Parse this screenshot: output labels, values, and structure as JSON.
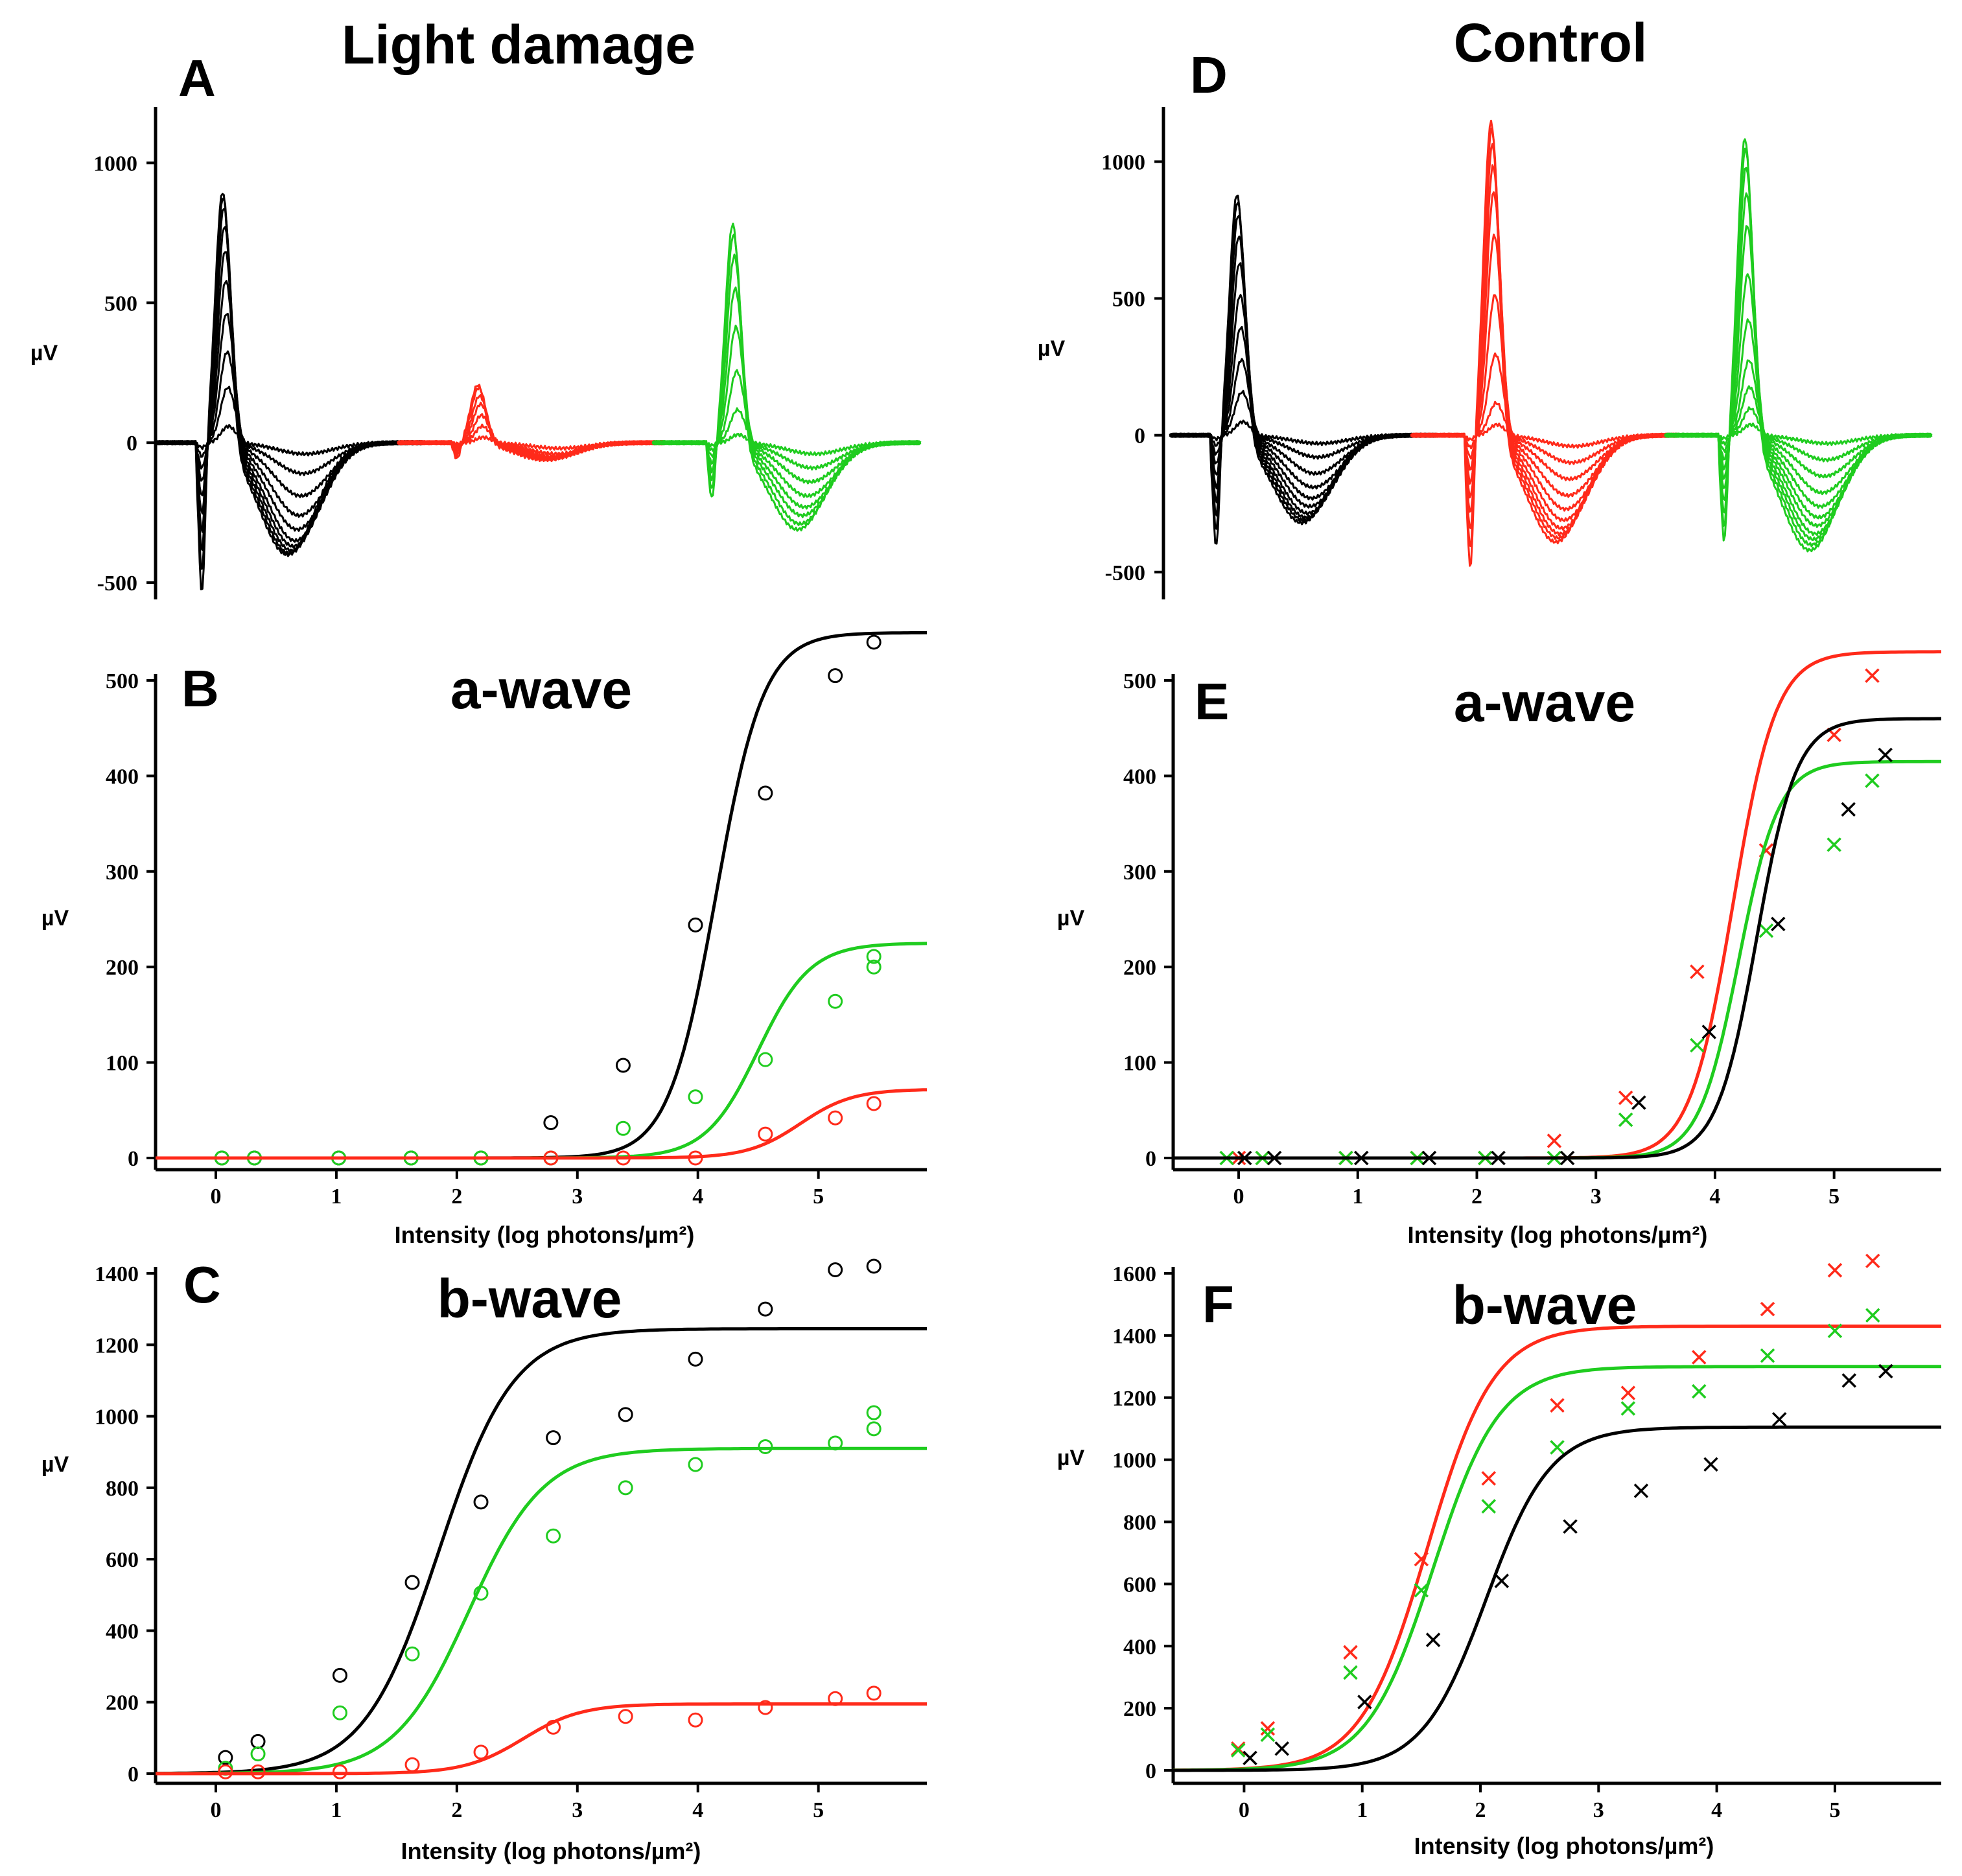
{
  "colors": {
    "black": "#000000",
    "red": "#ff2a1a",
    "green": "#1fcc1f"
  },
  "columns": [
    {
      "title": "Light damage"
    },
    {
      "title": "Control"
    }
  ],
  "panels": {
    "A": {
      "letter": "A",
      "title": "",
      "ylabel": "µV",
      "xlabel": ""
    },
    "B": {
      "letter": "B",
      "title": "a-wave",
      "ylabel": "µV",
      "xlabel": "Intensity (log photons/µm²)"
    },
    "C": {
      "letter": "C",
      "title": "b-wave",
      "ylabel": "µV",
      "xlabel": "Intensity (log photons/µm²)"
    },
    "D": {
      "letter": "D",
      "title": "",
      "ylabel": "µV",
      "xlabel": ""
    },
    "E": {
      "letter": "E",
      "title": "a-wave",
      "ylabel": "µV",
      "xlabel": "Intensity (log photons/µm²)"
    },
    "F": {
      "letter": "F",
      "title": "b-wave",
      "ylabel": "µV",
      "xlabel": "Intensity (log photons/µm²)"
    }
  },
  "chart_data": [
    {
      "id": "A",
      "type": "line",
      "title": "",
      "xlabel": "",
      "ylabel": "µV",
      "ylim": [
        -560,
        1200
      ],
      "yticks": [
        -500,
        0,
        500,
        1000
      ],
      "trace_groups": [
        {
          "color": "black",
          "peaks": [
            60,
            200,
            330,
            470,
            590,
            700,
            790,
            860,
            900,
            920
          ],
          "troughs": [
            -40,
            -110,
            -190,
            -260,
            -310,
            -350,
            -370,
            -385,
            -395,
            -400
          ],
          "awave": -550
        },
        {
          "color": "red",
          "peaks": [
            20,
            60,
            100,
            140,
            170,
            200,
            210
          ],
          "troughs": [
            -20,
            -40,
            -50,
            -55,
            -60,
            -60,
            -60
          ],
          "awave": -60
        },
        {
          "color": "green",
          "peaks": [
            30,
            120,
            260,
            420,
            560,
            680,
            760,
            800
          ],
          "troughs": [
            -40,
            -90,
            -140,
            -190,
            -230,
            -260,
            -290,
            -310
          ],
          "awave": -210
        }
      ]
    },
    {
      "id": "B",
      "type": "scatter",
      "title": "a-wave",
      "xlabel": "Intensity (log photons/µm²)",
      "ylabel": "µV",
      "xlim": [
        -0.5,
        5.9
      ],
      "ylim": [
        -15,
        545
      ],
      "xticks": [
        0,
        1,
        2,
        3,
        4,
        5
      ],
      "yticks": [
        0,
        100,
        200,
        300,
        400,
        500
      ],
      "marker": "circle",
      "series": [
        {
          "color": "black",
          "x": [
            0.05,
            0.32,
            1.02,
            1.62,
            2.2,
            2.78,
            3.38,
            3.98,
            4.56,
            5.14,
            5.46
          ],
          "y": [
            0,
            0,
            0,
            0,
            0,
            37,
            97,
            244,
            382,
            505,
            540
          ],
          "fit": {
            "max": 550,
            "half": 4.15,
            "n": 2.2
          }
        },
        {
          "color": "green",
          "x": [
            0.05,
            0.32,
            1.02,
            1.62,
            2.2,
            2.78,
            3.38,
            3.98,
            4.56,
            5.14,
            5.46,
            5.46
          ],
          "y": [
            0,
            0,
            0,
            0,
            0,
            0,
            31,
            64,
            103,
            164,
            200,
            211
          ],
          "fit": {
            "max": 225,
            "half": 4.5,
            "n": 2.0
          }
        },
        {
          "color": "red",
          "x": [
            2.78,
            3.38,
            3.98,
            4.56,
            5.14,
            5.46
          ],
          "y": [
            0,
            0,
            0,
            25,
            42,
            57
          ],
          "fit": {
            "max": 72,
            "half": 4.85,
            "n": 2.0
          }
        }
      ]
    },
    {
      "id": "C",
      "type": "scatter",
      "title": "b-wave",
      "xlabel": "Intensity (log photons/µm²)",
      "ylabel": "µV",
      "xlim": [
        -0.5,
        5.9
      ],
      "ylim": [
        -30,
        1420
      ],
      "xticks": [
        0,
        1,
        2,
        3,
        4,
        5
      ],
      "yticks": [
        0,
        200,
        400,
        600,
        800,
        1000,
        1200,
        1400
      ],
      "marker": "circle",
      "series": [
        {
          "color": "black",
          "x": [
            0.08,
            0.35,
            1.03,
            1.63,
            2.2,
            2.8,
            3.4,
            3.98,
            4.56,
            5.14,
            5.46
          ],
          "y": [
            45,
            90,
            275,
            535,
            760,
            940,
            1005,
            1160,
            1300,
            1410,
            1420
          ],
          "fit": {
            "max": 1245,
            "half": 1.85,
            "n": 1.4
          }
        },
        {
          "color": "green",
          "x": [
            0.08,
            0.35,
            1.03,
            1.63,
            2.2,
            2.8,
            3.4,
            3.98,
            4.56,
            5.14,
            5.46,
            5.46
          ],
          "y": [
            15,
            55,
            170,
            335,
            505,
            665,
            800,
            865,
            915,
            925,
            965,
            1010
          ],
          "fit": {
            "max": 910,
            "half": 2.1,
            "n": 1.4
          }
        },
        {
          "color": "red",
          "x": [
            0.08,
            0.35,
            1.03,
            1.63,
            2.2,
            2.8,
            3.4,
            3.98,
            4.56,
            5.14,
            5.46
          ],
          "y": [
            5,
            5,
            5,
            25,
            60,
            130,
            160,
            150,
            185,
            210,
            225
          ],
          "fit": {
            "max": 195,
            "half": 2.55,
            "n": 1.8
          }
        }
      ]
    },
    {
      "id": "D",
      "type": "line",
      "title": "",
      "xlabel": "",
      "ylabel": "µV",
      "ylim": [
        -600,
        1200
      ],
      "yticks": [
        -500,
        0,
        500,
        1000
      ],
      "trace_groups": [
        {
          "color": "black",
          "peaks": [
            50,
            160,
            280,
            400,
            520,
            640,
            740,
            820,
            870,
            900
          ],
          "troughs": [
            -30,
            -80,
            -140,
            -190,
            -230,
            -260,
            -285,
            -300,
            -310,
            -320
          ],
          "awave": -420
        },
        {
          "color": "red",
          "peaks": [
            40,
            120,
            300,
            520,
            740,
            900,
            1000,
            1080,
            1140,
            1170
          ],
          "troughs": [
            -40,
            -100,
            -160,
            -220,
            -270,
            -310,
            -340,
            -360,
            -375,
            -390
          ],
          "awave": -500
        },
        {
          "color": "green",
          "peaks": [
            40,
            100,
            180,
            280,
            430,
            600,
            780,
            900,
            1000,
            1070,
            1110
          ],
          "troughs": [
            -30,
            -90,
            -150,
            -210,
            -260,
            -300,
            -330,
            -360,
            -380,
            -400,
            -420
          ],
          "awave": -400
        }
      ]
    },
    {
      "id": "E",
      "type": "scatter",
      "title": "a-wave",
      "xlabel": "Intensity (log photons/µm²)",
      "ylabel": "µV",
      "xlim": [
        -0.55,
        5.9
      ],
      "ylim": [
        -15,
        505
      ],
      "xticks": [
        0,
        1,
        2,
        3,
        4,
        5
      ],
      "yticks": [
        0,
        100,
        200,
        300,
        400,
        500
      ],
      "marker": "x",
      "series": [
        {
          "color": "red",
          "x": [
            0.0,
            0.2,
            0.9,
            1.5,
            2.07,
            2.65,
            3.25,
            3.85,
            4.43,
            5.0,
            5.32
          ],
          "y": [
            0,
            0,
            0,
            0,
            0,
            18,
            63,
            195,
            322,
            443,
            505
          ],
          "fit": {
            "max": 530,
            "half": 4.15,
            "n": 2.4
          }
        },
        {
          "color": "green",
          "x": [
            -0.1,
            0.2,
            0.9,
            1.5,
            2.07,
            2.65,
            3.25,
            3.85,
            4.43,
            5.0,
            5.32
          ],
          "y": [
            0,
            0,
            0,
            0,
            0,
            0,
            40,
            118,
            238,
            328,
            395
          ],
          "fit": {
            "max": 415,
            "half": 4.2,
            "n": 2.6
          }
        },
        {
          "color": "black",
          "x": [
            0.05,
            0.3,
            1.03,
            1.6,
            2.18,
            2.76,
            3.36,
            3.95,
            4.53,
            5.12,
            5.43
          ],
          "y": [
            0,
            0,
            0,
            0,
            0,
            0,
            58,
            132,
            245,
            365,
            422
          ],
          "fit": {
            "max": 460,
            "half": 4.35,
            "n": 2.6
          }
        }
      ]
    },
    {
      "id": "F",
      "type": "scatter",
      "title": "b-wave",
      "xlabel": "Intensity (log photons/µm²)",
      "ylabel": "µV",
      "xlim": [
        -0.6,
        5.9
      ],
      "ylim": [
        -40,
        1620
      ],
      "xticks": [
        0,
        1,
        2,
        3,
        4,
        5
      ],
      "yticks": [
        0,
        200,
        400,
        600,
        800,
        1000,
        1200,
        1400,
        1600
      ],
      "marker": "x",
      "series": [
        {
          "color": "red",
          "x": [
            -0.05,
            0.2,
            0.9,
            1.5,
            2.07,
            2.65,
            3.25,
            3.85,
            4.43,
            5.0,
            5.32
          ],
          "y": [
            70,
            135,
            380,
            680,
            940,
            1175,
            1215,
            1330,
            1485,
            1610,
            1640
          ],
          "fit": {
            "max": 1430,
            "half": 1.55,
            "n": 1.55
          }
        },
        {
          "color": "green",
          "x": [
            -0.05,
            0.2,
            0.9,
            1.5,
            2.07,
            2.65,
            3.25,
            3.85,
            4.43,
            5.0,
            5.32
          ],
          "y": [
            65,
            115,
            315,
            580,
            850,
            1040,
            1165,
            1220,
            1335,
            1415,
            1465
          ],
          "fit": {
            "max": 1300,
            "half": 1.6,
            "n": 1.55
          }
        },
        {
          "color": "black",
          "x": [
            0.05,
            0.32,
            1.02,
            1.6,
            2.18,
            2.76,
            3.36,
            3.95,
            4.53,
            5.12,
            5.43
          ],
          "y": [
            40,
            70,
            220,
            420,
            610,
            785,
            900,
            985,
            1130,
            1255,
            1285
          ],
          "fit": {
            "max": 1105,
            "half": 2.05,
            "n": 1.6
          }
        }
      ]
    }
  ]
}
